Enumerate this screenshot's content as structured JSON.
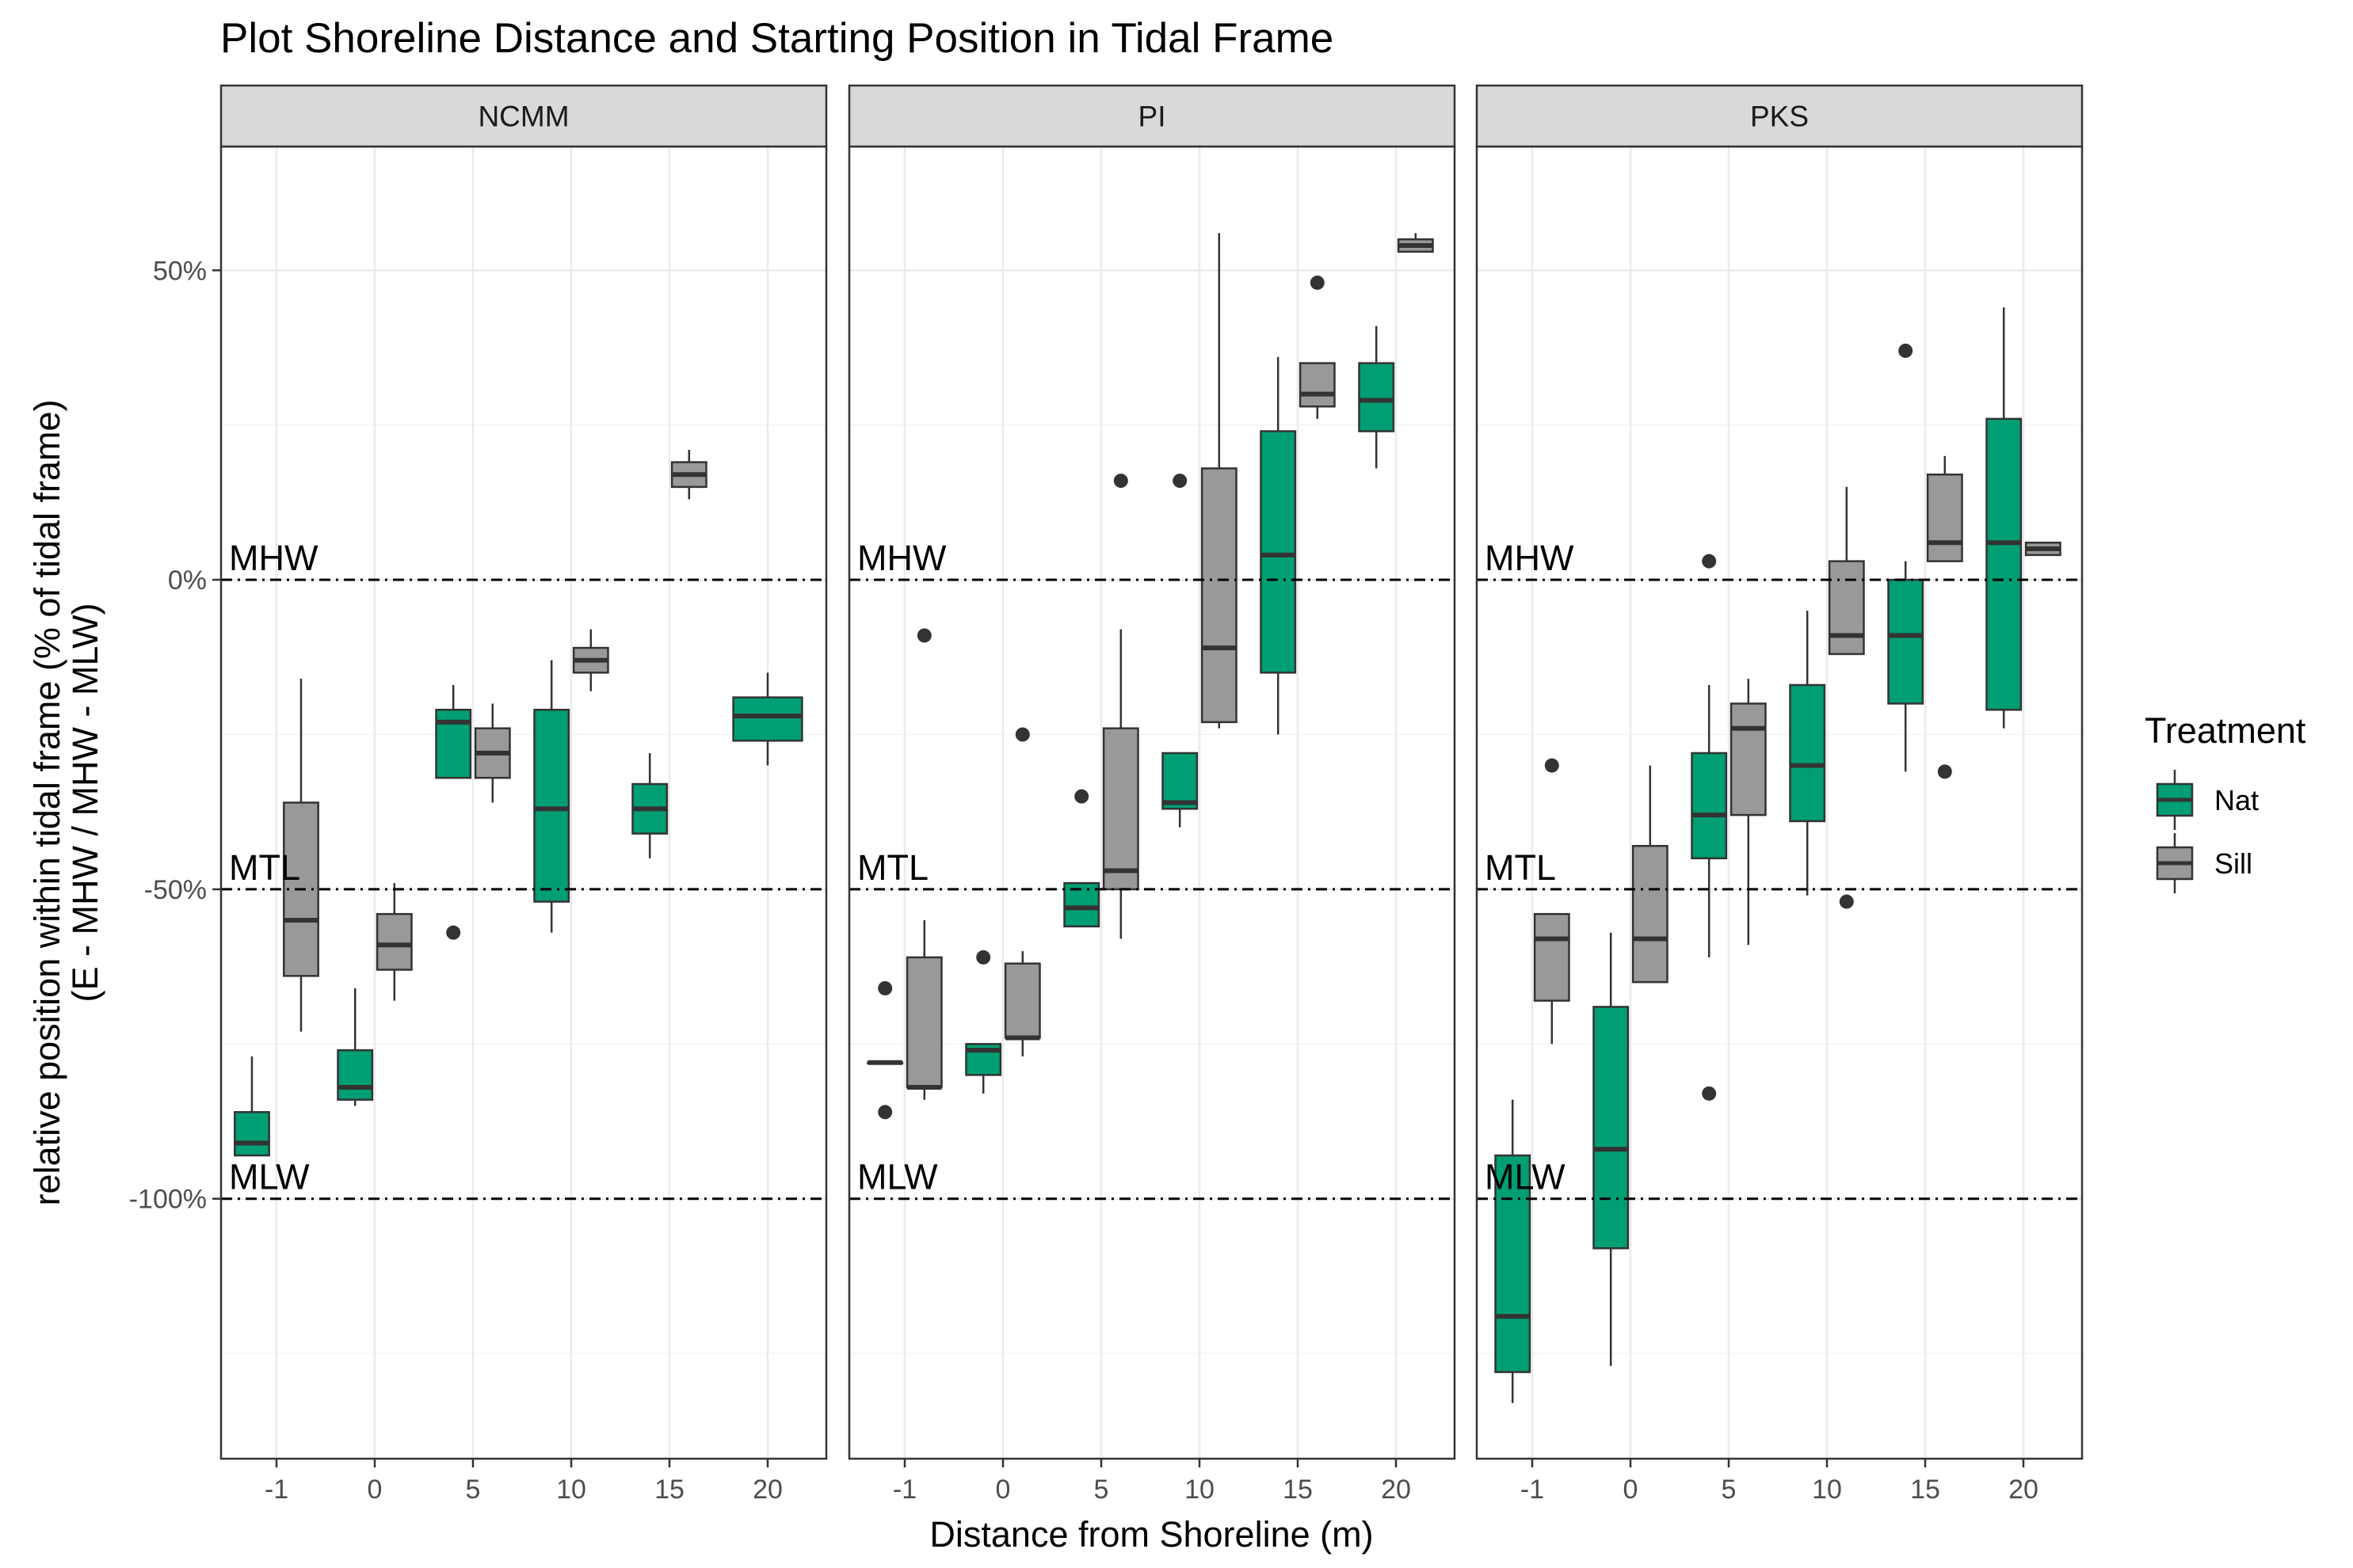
{
  "chart_data": {
    "type": "boxplot",
    "title": "Plot Shoreline Distance and Starting Position in Tidal Frame",
    "xlabel": "Distance from Shoreline (m)",
    "ylabel_lines": [
      "relative position within tidal frame (% of tidal frame)",
      "(E - MHW / MHW - MLW)"
    ],
    "ylim": [
      -142,
      70
    ],
    "y_ticks": [
      50,
      0,
      -50,
      -100
    ],
    "y_tick_labels": [
      "50%",
      "0%",
      "-50%",
      "-100%"
    ],
    "x_categories": [
      "-1",
      "0",
      "5",
      "10",
      "15",
      "20"
    ],
    "reference_lines": [
      {
        "label": "MHW",
        "y": 0
      },
      {
        "label": "MTL",
        "y": -50
      },
      {
        "label": "MLW",
        "y": -100
      }
    ],
    "legend": {
      "title": "Treatment",
      "position": "right",
      "items": [
        {
          "name": "Nat",
          "color": "#009E73"
        },
        {
          "name": "Sill",
          "color": "#999999"
        }
      ]
    },
    "grid": true,
    "panels": [
      {
        "name": "NCMM",
        "boxes": [
          {
            "group": "Nat",
            "cat": 0,
            "offset": -0.25,
            "width": 0.35,
            "min": -93,
            "q1": -93,
            "median": -91,
            "q3": -86,
            "max": -77,
            "outliers": []
          },
          {
            "group": "Sill",
            "cat": 0,
            "offset": 0.25,
            "width": 0.35,
            "min": -73,
            "q1": -64,
            "median": -55,
            "q3": -36,
            "max": -16,
            "outliers": []
          },
          {
            "group": "Nat",
            "cat": 1,
            "offset": -0.2,
            "width": 0.35,
            "min": -85,
            "q1": -84,
            "median": -82,
            "q3": -76,
            "max": -66,
            "outliers": []
          },
          {
            "group": "Sill",
            "cat": 1,
            "offset": 0.2,
            "width": 0.35,
            "min": -68,
            "q1": -63,
            "median": -59,
            "q3": -54,
            "max": -49,
            "outliers": []
          },
          {
            "group": "Nat",
            "cat": 2,
            "offset": -0.2,
            "width": 0.35,
            "min": -32,
            "q1": -32,
            "median": -23,
            "q3": -21,
            "max": -17,
            "outliers": [
              -57
            ]
          },
          {
            "group": "Sill",
            "cat": 2,
            "offset": 0.2,
            "width": 0.35,
            "min": -36,
            "q1": -32,
            "median": -28,
            "q3": -24,
            "max": -20,
            "outliers": []
          },
          {
            "group": "Nat",
            "cat": 3,
            "offset": -0.2,
            "width": 0.35,
            "min": -57,
            "q1": -52,
            "median": -37,
            "q3": -21,
            "max": -13,
            "outliers": []
          },
          {
            "group": "Sill",
            "cat": 3,
            "offset": 0.2,
            "width": 0.35,
            "min": -18,
            "q1": -15,
            "median": -13,
            "q3": -11,
            "max": -8,
            "outliers": []
          },
          {
            "group": "Nat",
            "cat": 4,
            "offset": -0.2,
            "width": 0.35,
            "min": -45,
            "q1": -41,
            "median": -37,
            "q3": -33,
            "max": -28,
            "outliers": []
          },
          {
            "group": "Sill",
            "cat": 4,
            "offset": 0.2,
            "width": 0.35,
            "min": 13,
            "q1": 15,
            "median": 17,
            "q3": 19,
            "max": 21,
            "outliers": []
          },
          {
            "group": "Nat",
            "cat": 5,
            "offset": 0,
            "width": 0.7,
            "min": -30,
            "q1": -26,
            "median": -22,
            "q3": -19,
            "max": -15,
            "outliers": []
          }
        ]
      },
      {
        "name": "PI",
        "boxes": [
          {
            "group": "Nat",
            "cat": 0,
            "offset": -0.2,
            "width": 0.35,
            "min": -78,
            "q1": -78,
            "median": -78,
            "q3": -78,
            "max": -78,
            "outliers": [
              -66,
              -86
            ]
          },
          {
            "group": "Sill",
            "cat": 0,
            "offset": 0.2,
            "width": 0.35,
            "min": -84,
            "q1": -82,
            "median": -82,
            "q3": -61,
            "max": -55,
            "outliers": [
              -9
            ]
          },
          {
            "group": "Nat",
            "cat": 1,
            "offset": -0.2,
            "width": 0.35,
            "min": -83,
            "q1": -80,
            "median": -76,
            "q3": -75,
            "max": -75,
            "outliers": [
              -61
            ]
          },
          {
            "group": "Sill",
            "cat": 1,
            "offset": 0.2,
            "width": 0.35,
            "min": -77,
            "q1": -74,
            "median": -74,
            "q3": -62,
            "max": -60,
            "outliers": [
              -25
            ]
          },
          {
            "group": "Nat",
            "cat": 2,
            "offset": -0.2,
            "width": 0.35,
            "min": -56,
            "q1": -56,
            "median": -53,
            "q3": -49,
            "max": -49,
            "outliers": [
              -35
            ]
          },
          {
            "group": "Sill",
            "cat": 2,
            "offset": 0.2,
            "width": 0.35,
            "min": -58,
            "q1": -50,
            "median": -47,
            "q3": -24,
            "max": -8,
            "outliers": [
              16
            ]
          },
          {
            "group": "Nat",
            "cat": 3,
            "offset": -0.2,
            "width": 0.35,
            "min": -40,
            "q1": -37,
            "median": -36,
            "q3": -28,
            "max": -28,
            "outliers": [
              16
            ]
          },
          {
            "group": "Sill",
            "cat": 3,
            "offset": 0.2,
            "width": 0.35,
            "min": -24,
            "q1": -23,
            "median": -11,
            "q3": 18,
            "max": 56,
            "outliers": []
          },
          {
            "group": "Nat",
            "cat": 4,
            "offset": -0.2,
            "width": 0.35,
            "min": -25,
            "q1": -15,
            "median": 4,
            "q3": 24,
            "max": 36,
            "outliers": []
          },
          {
            "group": "Sill",
            "cat": 4,
            "offset": 0.2,
            "width": 0.35,
            "min": 26,
            "q1": 28,
            "median": 30,
            "q3": 35,
            "max": 35,
            "outliers": [
              48
            ]
          },
          {
            "group": "Nat",
            "cat": 5,
            "offset": -0.2,
            "width": 0.35,
            "min": 18,
            "q1": 24,
            "median": 29,
            "q3": 35,
            "max": 41,
            "outliers": []
          },
          {
            "group": "Sill",
            "cat": 5,
            "offset": 0.2,
            "width": 0.35,
            "min": 53,
            "q1": 53,
            "median": 54,
            "q3": 55,
            "max": 56,
            "outliers": []
          }
        ]
      },
      {
        "name": "PKS",
        "boxes": [
          {
            "group": "Nat",
            "cat": 0,
            "offset": -0.2,
            "width": 0.35,
            "min": -133,
            "q1": -128,
            "median": -119,
            "q3": -93,
            "max": -84,
            "outliers": []
          },
          {
            "group": "Sill",
            "cat": 0,
            "offset": 0.2,
            "width": 0.35,
            "min": -75,
            "q1": -68,
            "median": -58,
            "q3": -54,
            "max": -54,
            "outliers": [
              -30
            ]
          },
          {
            "group": "Nat",
            "cat": 1,
            "offset": -0.2,
            "width": 0.35,
            "min": -127,
            "q1": -108,
            "median": -92,
            "q3": -69,
            "max": -57,
            "outliers": []
          },
          {
            "group": "Sill",
            "cat": 1,
            "offset": 0.2,
            "width": 0.35,
            "min": -65,
            "q1": -65,
            "median": -58,
            "q3": -43,
            "max": -30,
            "outliers": []
          },
          {
            "group": "Nat",
            "cat": 2,
            "offset": -0.2,
            "width": 0.35,
            "min": -61,
            "q1": -45,
            "median": -38,
            "q3": -28,
            "max": -17,
            "outliers": [
              3,
              -83
            ]
          },
          {
            "group": "Sill",
            "cat": 2,
            "offset": 0.2,
            "width": 0.35,
            "min": -59,
            "q1": -38,
            "median": -24,
            "q3": -20,
            "max": -16,
            "outliers": []
          },
          {
            "group": "Nat",
            "cat": 3,
            "offset": -0.2,
            "width": 0.35,
            "min": -51,
            "q1": -39,
            "median": -30,
            "q3": -17,
            "max": -5,
            "outliers": []
          },
          {
            "group": "Sill",
            "cat": 3,
            "offset": 0.2,
            "width": 0.35,
            "min": -12,
            "q1": -12,
            "median": -9,
            "q3": 3,
            "max": 15,
            "outliers": [
              -52
            ]
          },
          {
            "group": "Nat",
            "cat": 4,
            "offset": -0.2,
            "width": 0.35,
            "min": -31,
            "q1": -20,
            "median": -9,
            "q3": 0,
            "max": 3,
            "outliers": [
              37
            ]
          },
          {
            "group": "Sill",
            "cat": 4,
            "offset": 0.2,
            "width": 0.35,
            "min": 3,
            "q1": 3,
            "median": 6,
            "q3": 17,
            "max": 20,
            "outliers": [
              -31
            ]
          },
          {
            "group": "Nat",
            "cat": 5,
            "offset": -0.2,
            "width": 0.35,
            "min": -24,
            "q1": -21,
            "median": 6,
            "q3": 26,
            "max": 44,
            "outliers": []
          },
          {
            "group": "Sill",
            "cat": 5,
            "offset": 0.2,
            "width": 0.35,
            "min": 4,
            "q1": 4,
            "median": 5,
            "q3": 6,
            "max": 6,
            "outliers": []
          }
        ]
      }
    ]
  }
}
